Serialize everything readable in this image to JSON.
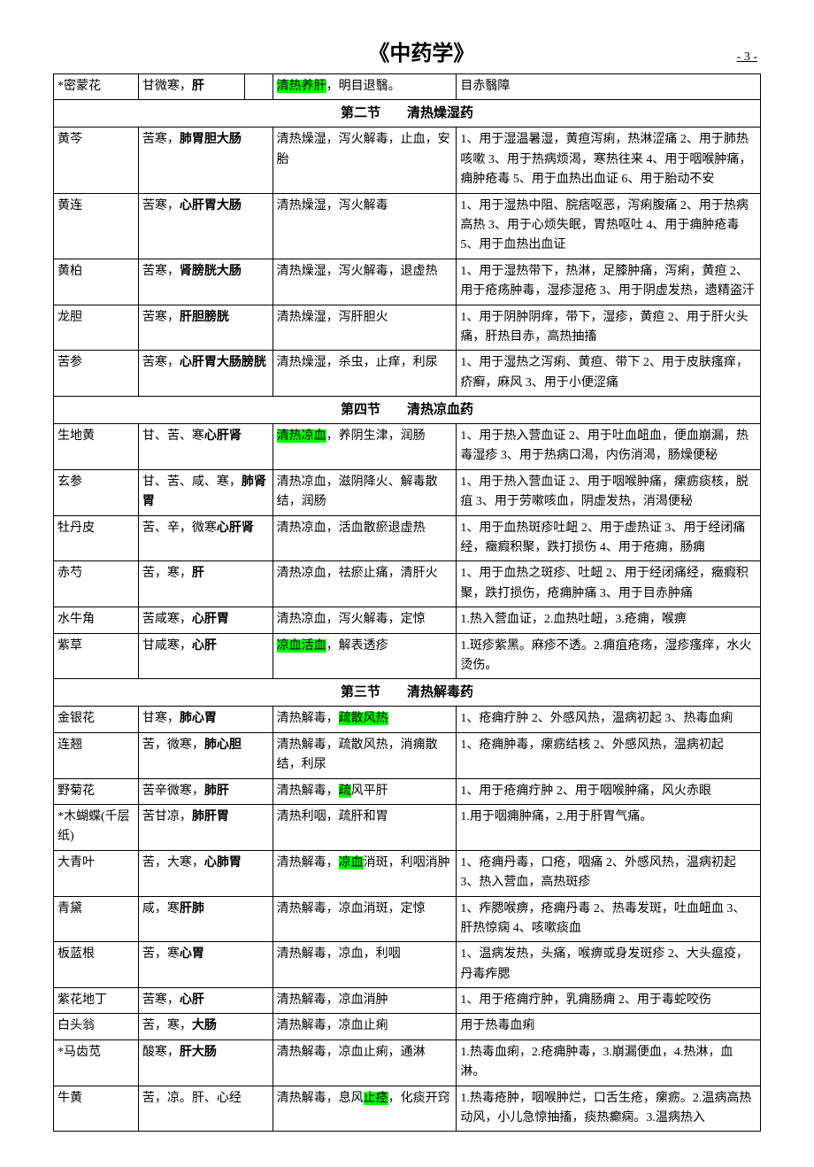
{
  "doc_title": "《中药学》",
  "page_num": "- 3 -",
  "col_widths": [
    "12%",
    "16%",
    "24%",
    "48%"
  ],
  "col_widths_b": [
    "12%",
    "18%",
    "27%",
    "43%"
  ],
  "highlight_color": "#00ff00",
  "top_row": {
    "name": "*密蒙花",
    "prop": "甘微寒，",
    "prop_bold": "肝",
    "func_pre": "",
    "func_hl": "清热养肝",
    "func_post": "，明目退翳。",
    "use": "目赤翳障"
  },
  "sections": [
    {
      "title": "第二节　　清热燥湿药",
      "layout": "a",
      "rows": [
        {
          "name": "黄芩",
          "prop_plain": "苦寒，",
          "prop_bold": "肺胃胆大肠",
          "func": [
            {
              "t": "清热燥湿，泻火解毒，止血，安胎"
            }
          ],
          "use": "1、用于湿温暑湿，黄疸泻痢，热淋涩痛 2、用于肺热咳嗽 3、用于热病烦渴，寒热往来 4、用于咽喉肿痛，痈肿疮毒 5、用于血热出血证 6、用于胎动不安"
        },
        {
          "name": "黄连",
          "prop_plain": "苦寒，",
          "prop_bold": "心肝胃大肠",
          "func": [
            {
              "t": "清热燥湿，泻火解毒"
            }
          ],
          "use": "1、用于湿热中阻、脘痞呕恶，泻痢腹痛 2、用于热病高热 3、用于心烦失眠，胃热呕吐 4、用于痈肿疮毒 5、用于血热出血证"
        },
        {
          "name": "黄柏",
          "prop_plain": "苦寒，",
          "prop_bold": "肾膀胱大肠",
          "func": [
            {
              "t": "清热燥湿，泻火解毒，退虚热"
            }
          ],
          "use": "1、用于湿热带下，热淋，足膝肿痛，泻痢，黄疸 2、用于疮疡肿毒，湿疹湿疮 3、用于阴虚发热，遗精盗汗"
        },
        {
          "name": "龙胆",
          "prop_plain": "苦寒，",
          "prop_bold": "肝胆膀胱",
          "func": [
            {
              "t": "清热燥湿，泻肝胆火"
            }
          ],
          "use": "1、用于阴肿阴痒，带下，湿疹，黄疸 2、用于肝火头痛，肝热目赤，高热抽搐"
        },
        {
          "name": "苦参",
          "prop_plain": "苦寒，",
          "prop_bold": "心肝胃大肠膀胱",
          "func": [
            {
              "t": "清热燥湿，杀虫，止痒，利尿"
            }
          ],
          "use": "1、用于湿热之泻痢、黄疸、带下 2、用于皮肤瘙痒，疥癣，麻风 3、用于小便涩痛"
        }
      ]
    },
    {
      "title": "第四节　　清热凉血药",
      "layout": "a",
      "rows": [
        {
          "name": "生地黄",
          "prop_plain": "甘、苦、寒",
          "prop_bold": "心肝肾",
          "func": [
            {
              "hl": "清热凉血"
            },
            {
              "t": "，养阴生津，润肠"
            }
          ],
          "use": "1、用于热入营血证 2、用于吐血衄血，便血崩漏，热毒湿疹 3、用于热病口渴，内伤消渴，肠燥便秘"
        },
        {
          "name": "玄参",
          "prop_plain": "甘、苦、咸、寒，",
          "prop_bold": "肺肾胃",
          "func": [
            {
              "t": "清热凉血，滋阴降火、解毒散结，润肠"
            }
          ],
          "use": "1、用于热入营血证 2、用于咽喉肿痛，瘰疬痰核，脱疽 3、用于劳嗽咳血，阴虚发热，消渴便秘"
        },
        {
          "name": "牡丹皮",
          "prop_plain": "苦、辛，微寒",
          "prop_bold": "心肝肾",
          "func": [
            {
              "t": "清热凉血，活血散瘀退虚热"
            }
          ],
          "use": "1、用于血热斑疹吐衄 2、用于虚热证 3、用于经闭痛经，癥瘕积聚，跌打损伤 4、用于疮痈，肠痈"
        },
        {
          "name": "赤芍",
          "prop_plain": "苦，寒，",
          "prop_bold": "肝",
          "func": [
            {
              "t": "清热凉血，祛瘀止痛，清肝火"
            }
          ],
          "use": "1、用于血热之斑疹、吐衄 2、用于经闭痛经，癥瘕积聚，跌打损伤，疮痈肿痛 3、用于目赤肿痛"
        },
        {
          "name": "水牛角",
          "prop_plain": "苦咸寒，",
          "prop_bold": "心肝胃",
          "func": [
            {
              "t": "清热凉血，泻火解毒，定惊"
            }
          ],
          "use": "1.热入营血证，2.血热吐衄，3.疮痈，喉痹"
        },
        {
          "name": "紫草",
          "prop_plain": "甘咸寒，",
          "prop_bold": "心肝",
          "func": [
            {
              "hl": "凉血活血"
            },
            {
              "t": "，解表透疹"
            }
          ],
          "use": "1.斑疹紫黑。麻疹不透。2.痈疽疮疡，湿疹瘙痒，水火烫伤。"
        }
      ]
    },
    {
      "title": "第三节　　清热解毒药",
      "layout": "b",
      "rows": [
        {
          "name": "金银花",
          "prop_plain": "甘寒，",
          "prop_bold": "肺心胃",
          "func": [
            {
              "t": "清热解毒，"
            },
            {
              "hl": "疏散风热"
            }
          ],
          "use": "1、疮痈疔肿 2、外感风热，温病初起 3、热毒血痢"
        },
        {
          "name": "连翘",
          "prop_plain": "苦，微寒，",
          "prop_bold": "肺心胆",
          "func": [
            {
              "t": "清热解毒，疏散风热，消痈散结，利尿"
            }
          ],
          "use": "1、疮痈肿毒，瘰疬结核 2、外感风热，温病初起"
        },
        {
          "name": "野菊花",
          "prop_plain": "苦辛微寒，",
          "prop_bold": "肺肝",
          "func": [
            {
              "t": "清热解毒，"
            },
            {
              "hl": "疏"
            },
            {
              "t": "风平肝"
            }
          ],
          "use": "1、用于疮痈疔肿 2、用于咽喉肿痛，风火赤眼"
        },
        {
          "name": "*木蝴蝶(千层纸)",
          "prop_plain": "苦甘凉，",
          "prop_bold": "肺肝胃",
          "func": [
            {
              "t": "清热利咽，疏肝和胃"
            }
          ],
          "use": "1.用于咽痈肿痛，2.用于肝胃气痛。"
        },
        {
          "name": "大青叶",
          "prop_plain": "苦，大寒，",
          "prop_bold": "心肺胃",
          "func": [
            {
              "t": "清热解毒，"
            },
            {
              "hl": "凉血"
            },
            {
              "t": "消斑，利咽消肿"
            }
          ],
          "use": "1、疮痈丹毒，口疮，咽痛 2、外感风热，温病初起 3、热入营血，高热斑疹"
        },
        {
          "name": "青黛",
          "prop_plain": "咸，寒",
          "prop_bold": "肝肺",
          "func": [
            {
              "t": "清热解毒，凉血消斑，定惊"
            }
          ],
          "use": "1、痄腮喉痹，疮痈丹毒 2、热毒发斑，吐血衄血 3、肝热惊痫 4、咳嗽痰血"
        },
        {
          "name": "板蓝根",
          "prop_plain": "苦，寒",
          "prop_bold": "心胃",
          "func": [
            {
              "t": "清热解毒，凉血，利咽"
            }
          ],
          "use": "1、温病发热，头痛，喉痹或身发斑疹 2、大头瘟疫，丹毒痄腮"
        },
        {
          "name": "紫花地丁",
          "prop_plain": "苦寒，",
          "prop_bold": "心肝",
          "func": [
            {
              "t": "清热解毒，凉血消肿"
            }
          ],
          "use": "1、用于疮痈疔肿，乳痈肠痈 2、用于毒蛇咬伤"
        },
        {
          "name": "白头翁",
          "prop_plain": "苦，寒，",
          "prop_bold": "大肠",
          "func": [
            {
              "t": "清热解毒，凉血止痢"
            }
          ],
          "use": "用于热毒血痢"
        },
        {
          "name": "*马齿苋",
          "prop_plain": "酸寒，",
          "prop_bold": "肝大肠",
          "func": [
            {
              "t": "清热解毒，凉血止痢，通淋"
            }
          ],
          "use": "1.热毒血痢，2.疮痈肿毒，3.崩漏便血，4.热淋，血淋。"
        },
        {
          "name": "牛黄",
          "prop_plain": "苦，凉。肝、心经",
          "prop_bold": "",
          "func": [
            {
              "t": "清热解毒，息风"
            },
            {
              "hl": "止痉"
            },
            {
              "t": "，化痰开窍"
            }
          ],
          "use": "1.热毒疮肿，咽喉肿烂，口舌生疮，瘰疬。2.温病高热动风，小儿急惊抽搐，痰热癫痫。3.温病热入"
        }
      ]
    }
  ]
}
